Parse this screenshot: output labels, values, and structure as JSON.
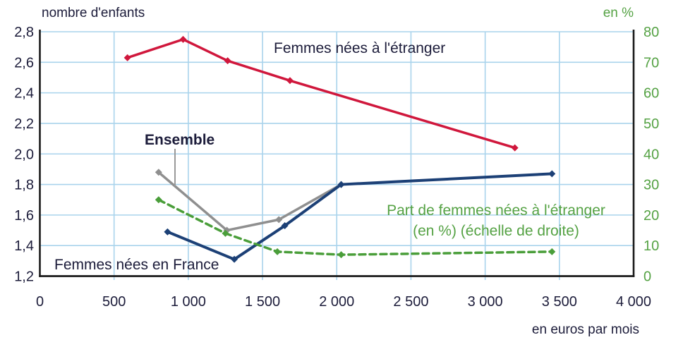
{
  "chart_data": {
    "type": "line",
    "title_left_axis": "nombre d'enfants",
    "title_right_axis": "en %",
    "x_label": "en euros  par mois",
    "grid": true,
    "x_axis": {
      "range": [
        0,
        4000
      ],
      "tick_values": [
        0,
        500,
        1000,
        1500,
        2000,
        2500,
        3000,
        3500,
        4000
      ],
      "tick_labels": [
        "0",
        "500",
        "1 000",
        "1 500",
        "2 000",
        "2 500",
        "3 000",
        "3 500",
        "4 000"
      ]
    },
    "left_axis": {
      "range": [
        1.2,
        2.8
      ],
      "tick_values": [
        2.8,
        2.6,
        2.4,
        2.2,
        2.0,
        1.8,
        1.6,
        1.4,
        1.2
      ],
      "tick_labels": [
        "2,8",
        "2,6",
        "2,4",
        "2,2",
        "2,0",
        "1,8",
        "1,6",
        "1,4",
        "1,2"
      ]
    },
    "right_axis": {
      "range": [
        0,
        80
      ],
      "tick_values": [
        80,
        70,
        60,
        50,
        40,
        30,
        20,
        10,
        0
      ],
      "tick_labels": [
        "80",
        "70",
        "60",
        "50",
        "40",
        "30",
        "20",
        "10",
        "0"
      ]
    },
    "series": [
      {
        "name": "Femmes nées à l'étranger",
        "axis": "left",
        "style": "solid",
        "color": "#d0173c",
        "x": [
          590,
          965,
          1265,
          1685,
          3200
        ],
        "y": [
          2.63,
          2.75,
          2.61,
          2.48,
          2.04
        ]
      },
      {
        "name": "Ensemble",
        "axis": "left",
        "style": "solid",
        "color": "#8f8f8f",
        "x": [
          800,
          1260,
          1610,
          2030
        ],
        "y": [
          1.88,
          1.5,
          1.57,
          1.8
        ]
      },
      {
        "name": "Femmes nées en France",
        "axis": "left",
        "style": "solid",
        "color": "#1c4076",
        "x": [
          860,
          1310,
          1650,
          2030,
          3450
        ],
        "y": [
          1.49,
          1.31,
          1.53,
          1.8,
          1.87
        ]
      },
      {
        "name": "Part de femmes nées à l'étranger (en %) (échelle de droite)",
        "axis": "right",
        "style": "dashed",
        "color": "#4a9e3a",
        "x": [
          800,
          1250,
          1600,
          2030,
          3450
        ],
        "y": [
          25,
          14,
          8,
          7,
          8
        ]
      }
    ],
    "annotations": {
      "etranger": "Femmes nées à l'étranger",
      "ensemble": "Ensemble",
      "france": "Femmes nées en France",
      "part_line1": "Part de femmes nées à l'étranger",
      "part_line2": "(en %) (échelle de droite)"
    },
    "legend_position": "inline-labels"
  },
  "colors": {
    "grid": "#a9d3ec",
    "axis": "#1a1a1a",
    "text_navy": "#1c1c3a",
    "text_green": "#55a244"
  }
}
